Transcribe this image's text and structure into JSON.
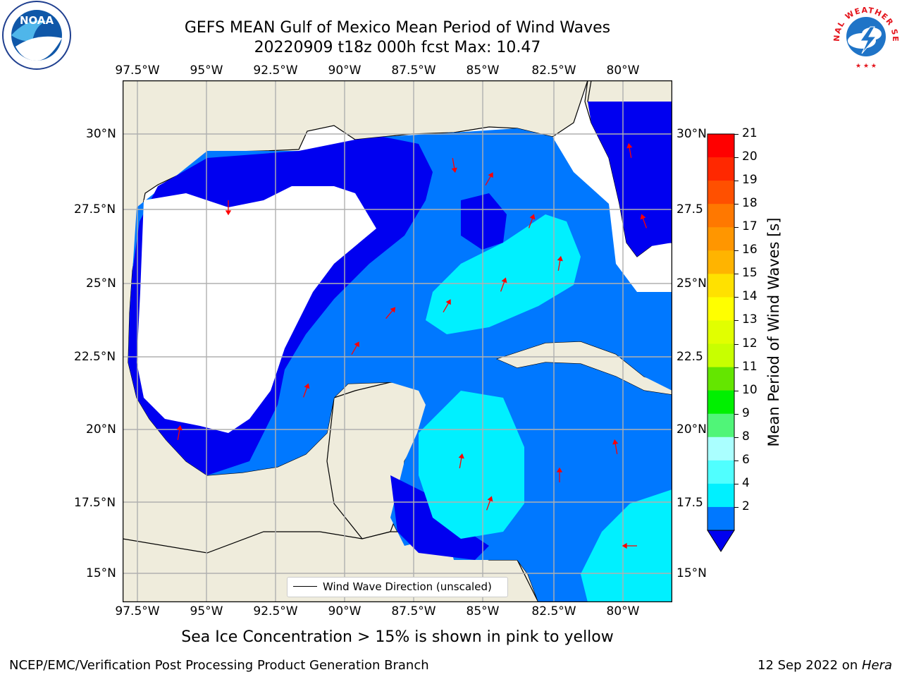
{
  "title": {
    "line1": "GEFS MEAN Gulf of Mexico Mean Period of Wind Waves",
    "line2": "20220909 t18z 000h fcst   Max: 10.47"
  },
  "map": {
    "lon_labels": [
      "97.5°W",
      "95°W",
      "92.5°W",
      "90°W",
      "87.5°W",
      "85°W",
      "82.5°W",
      "80°W"
    ],
    "lat_labels_left": [
      "30°N",
      "27.5°N",
      "25°N",
      "22.5°N",
      "20°N",
      "17.5°N",
      "15°N"
    ],
    "lat_labels_right": [
      "30°N",
      "27.5",
      "25°N",
      "22.5",
      "20°N",
      "17.5",
      "15°N"
    ],
    "extent": {
      "lon_min": -98,
      "lon_max": -78.2,
      "lat_min": 14,
      "lat_max": 31.8
    },
    "grid": true,
    "colors": {
      "land": "#efecdc",
      "ocean_bg": "#ffffff",
      "arrow": "#ff0000",
      "coast": "#000000",
      "grid": "#b0b0b0"
    }
  },
  "legend": {
    "label": "Wind Wave Direction (unscaled)",
    "position": "lower-center"
  },
  "colorbar": {
    "label": "Mean Period of Wind Waves [s]",
    "ticks": [
      "21",
      "20",
      "19",
      "18",
      "17",
      "16",
      "15",
      "14",
      "13",
      "12",
      "11",
      "10",
      "9",
      "8",
      "6",
      "4",
      "2"
    ],
    "level_colors": [
      "#ff0000",
      "#ff2800",
      "#ff5000",
      "#ff7800",
      "#ff9600",
      "#ffb400",
      "#ffe100",
      "#ffff00",
      "#e1ff00",
      "#c8ff00",
      "#64e600",
      "#00f000",
      "#50f578",
      "#aaffff",
      "#50ffff",
      "#00f0ff",
      "#0078ff"
    ],
    "extend_color": "#0000f0"
  },
  "subcaption": "Sea Ice Concentration > 15% is shown in pink to yellow",
  "footer": {
    "left": "NCEP/EMC/Verification Post Processing Product Generation Branch",
    "right_prefix": "12 Sep 2022 on ",
    "right_host": "Hera"
  },
  "logos": {
    "left": "NOAA",
    "right": "NATIONAL WEATHER SERVICE"
  }
}
